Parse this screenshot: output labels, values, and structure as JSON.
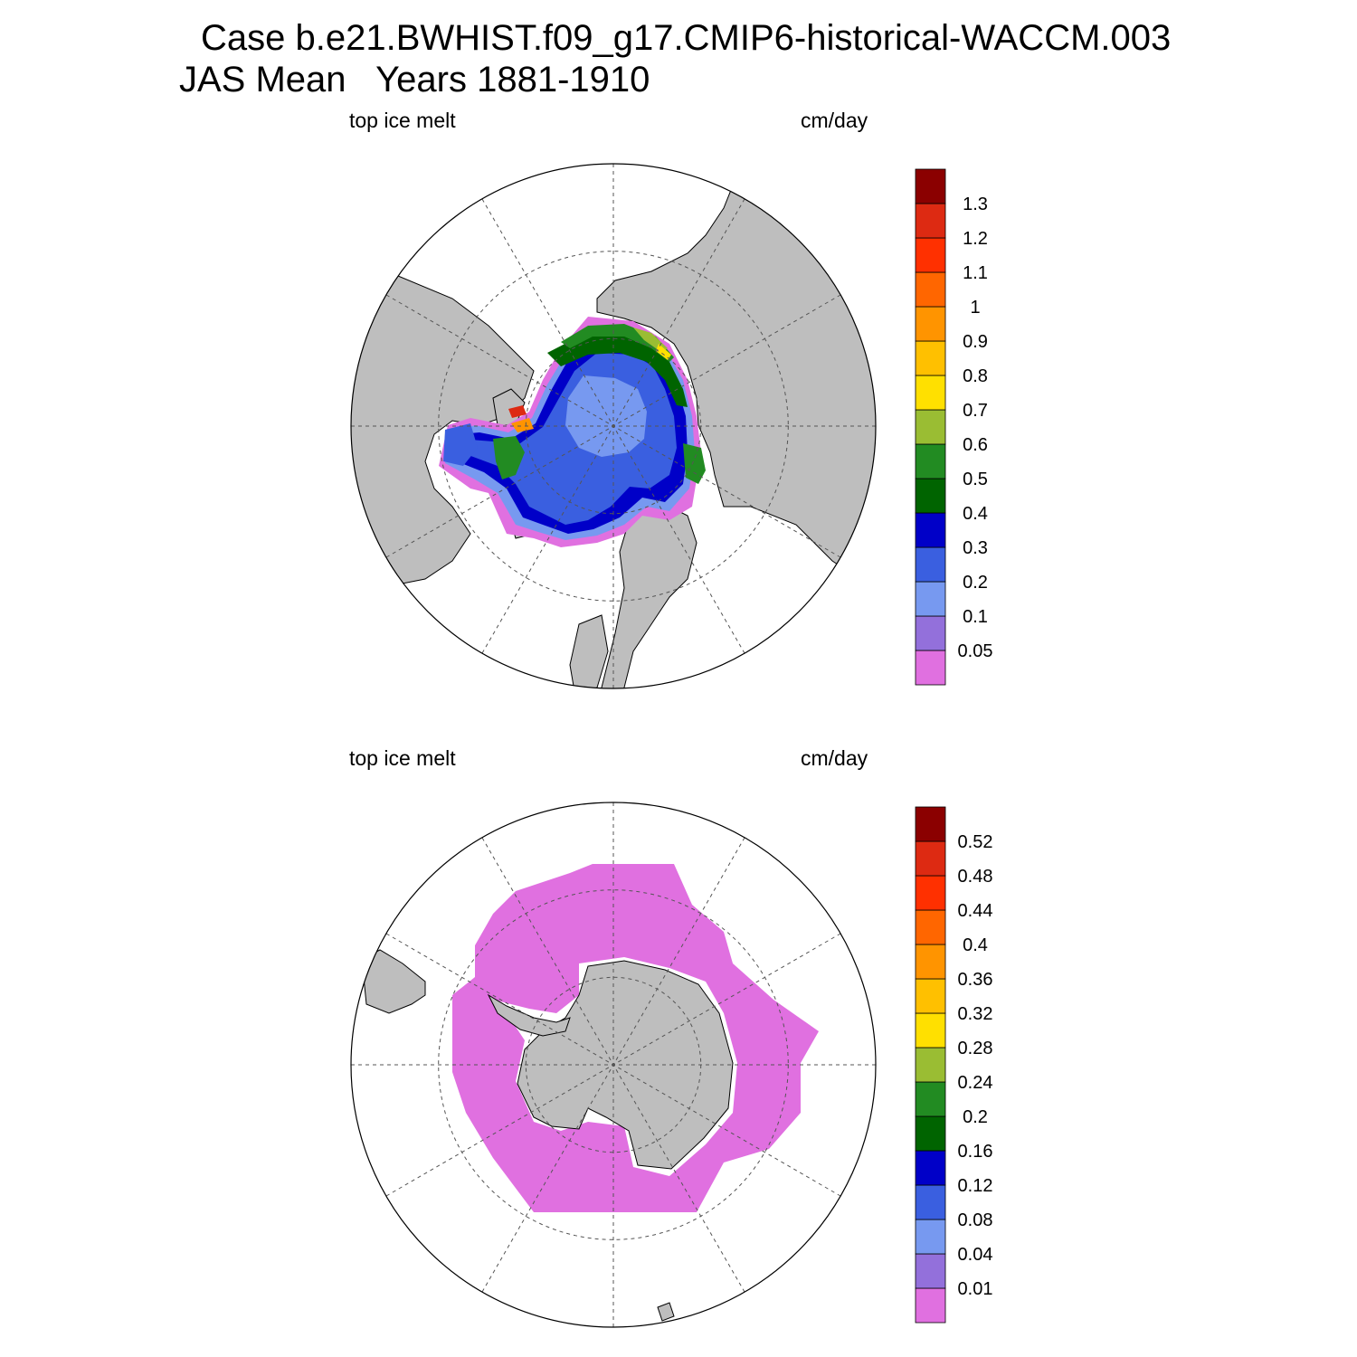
{
  "title": {
    "line1": "Case b.e21.BWHIST.f09_g17.CMIP6-historical-WACCM.003",
    "line2": "JAS Mean   Years 1881-1910"
  },
  "colors": {
    "land": "#bebebe",
    "ocean": "#ffffff",
    "grid": "#555555",
    "palette": [
      "#e070e0",
      "#9370db",
      "#7799f0",
      "#3a5fe0",
      "#0000c8",
      "#006400",
      "#228b22",
      "#9abd33",
      "#ffe000",
      "#ffc000",
      "#ff9400",
      "#ff6600",
      "#ff3000",
      "#dd2a12",
      "#8b0000"
    ]
  },
  "panels": [
    {
      "name": "north",
      "hemisphere": "Northern Hemisphere",
      "variable_label": "top ice melt",
      "units_label": "cm/day",
      "colorbar_levels": [
        "0.05",
        "0.1",
        "0.2",
        "0.3",
        "0.4",
        "0.5",
        "0.6",
        "0.7",
        "0.8",
        "0.9",
        "1",
        "1.1",
        "1.2",
        "1.3"
      ]
    },
    {
      "name": "south",
      "hemisphere": "Southern Hemisphere",
      "variable_label": "top ice melt",
      "units_label": "cm/day",
      "colorbar_levels": [
        "0.01",
        "0.04",
        "0.08",
        "0.12",
        "0.16",
        "0.2",
        "0.24",
        "0.28",
        "0.32",
        "0.36",
        "0.4",
        "0.44",
        "0.48",
        "0.52"
      ]
    }
  ]
}
